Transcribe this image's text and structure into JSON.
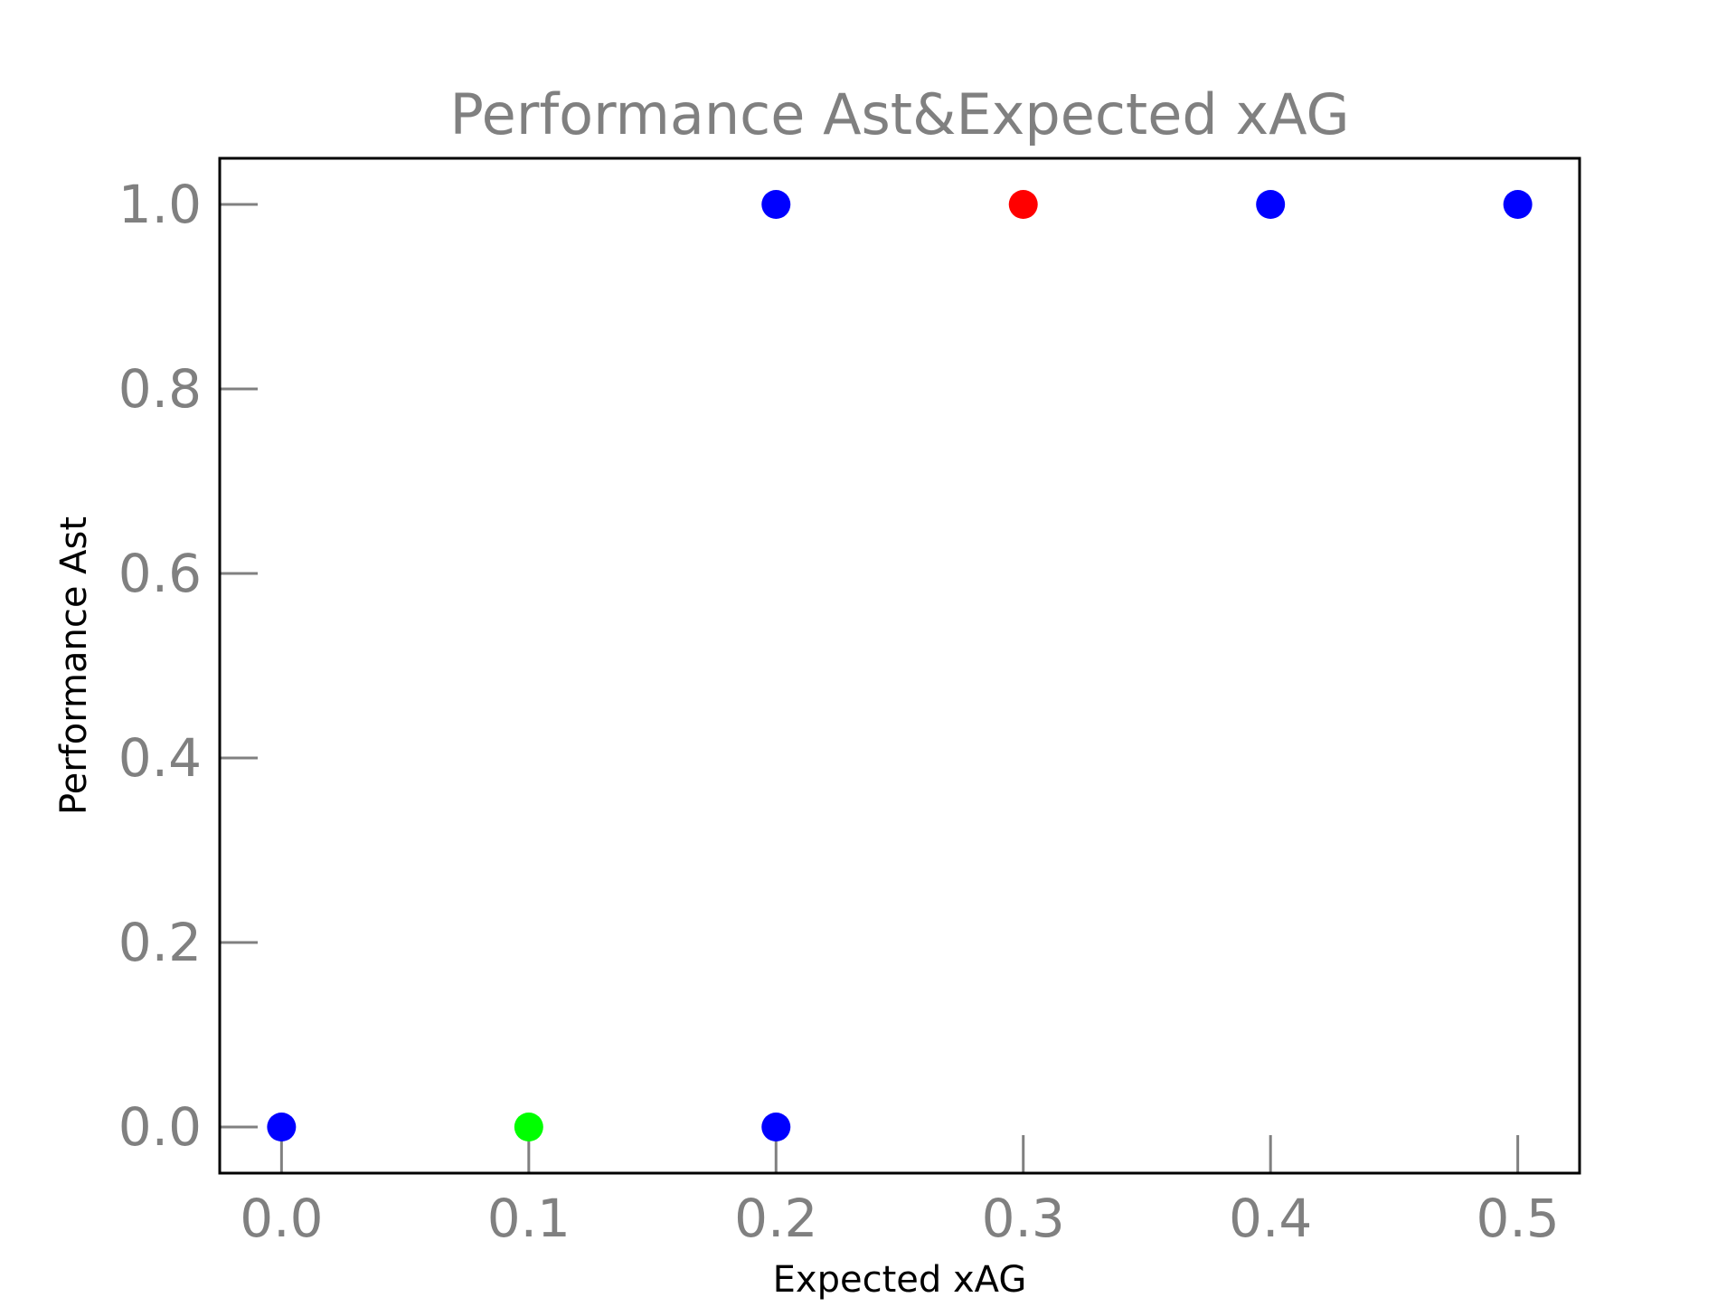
{
  "chart_data": {
    "type": "scatter",
    "title": "Performance Ast&Expected xAG",
    "xlabel": "Expected xAG",
    "ylabel": "Performance Ast",
    "xlim": [
      -0.025,
      0.525
    ],
    "ylim": [
      -0.05,
      1.05
    ],
    "x_ticks": [
      0.0,
      0.1,
      0.2,
      0.3,
      0.4,
      0.5
    ],
    "x_tick_labels": [
      "0.0",
      "0.1",
      "0.2",
      "0.3",
      "0.4",
      "0.5"
    ],
    "y_ticks": [
      0.0,
      0.2,
      0.4,
      0.6,
      0.8,
      1.0
    ],
    "y_tick_labels": [
      "0.0",
      "0.2",
      "0.4",
      "0.6",
      "0.8",
      "1.0"
    ],
    "grid": false,
    "points": [
      {
        "x": 0.0,
        "y": 0.0,
        "color": "#0000ff"
      },
      {
        "x": 0.1,
        "y": 0.0,
        "color": "#00ff00"
      },
      {
        "x": 0.2,
        "y": 0.0,
        "color": "#0000ff"
      },
      {
        "x": 0.2,
        "y": 1.0,
        "color": "#0000ff"
      },
      {
        "x": 0.3,
        "y": 1.0,
        "color": "#ff0000"
      },
      {
        "x": 0.4,
        "y": 1.0,
        "color": "#0000ff"
      },
      {
        "x": 0.5,
        "y": 1.0,
        "color": "#0000ff"
      }
    ]
  }
}
